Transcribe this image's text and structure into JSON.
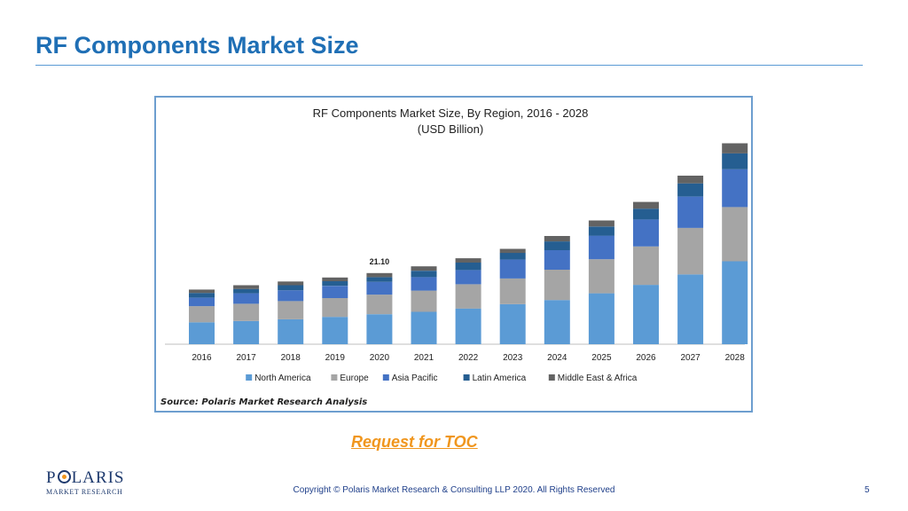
{
  "slide": {
    "title": "RF Components Market Size",
    "toc_link": "Request for TOC",
    "copyright": "Copyright © Polaris Market Research & Consulting LLP 2020. All Rights Reserved",
    "page_number": "5",
    "logo_main": "POLARIS",
    "logo_sub": "MARKET RESEARCH"
  },
  "chart_data": {
    "type": "bar",
    "stacked": true,
    "title": "RF Components Market Size, By Region, 2016 - 2028",
    "subtitle": "(USD Billion)",
    "source": "Source: Polaris  Market Research Analysis",
    "categories": [
      "2016",
      "2017",
      "2018",
      "2019",
      "2020",
      "2021",
      "2022",
      "2023",
      "2024",
      "2025",
      "2026",
      "2027",
      "2028"
    ],
    "annotation": {
      "category": "2020",
      "label": "21.10"
    },
    "ylim": [
      0,
      60
    ],
    "legend_position": "bottom",
    "grid": false,
    "series": [
      {
        "name": "North America",
        "color": "#5b9bd5",
        "values": [
          6.5,
          6.9,
          7.4,
          8.1,
          8.9,
          9.6,
          10.6,
          11.9,
          13.1,
          15.1,
          17.6,
          20.7,
          24.6
        ]
      },
      {
        "name": "Europe",
        "color": "#a5a5a5",
        "values": [
          4.8,
          5.1,
          5.4,
          5.6,
          5.8,
          6.3,
          7.2,
          7.6,
          9.0,
          10.1,
          11.4,
          13.8,
          16.1
        ]
      },
      {
        "name": "Asia Pacific",
        "color": "#4472c4",
        "values": [
          2.5,
          3.1,
          3.2,
          3.6,
          3.8,
          4.0,
          4.2,
          5.6,
          5.8,
          7.0,
          8.0,
          9.3,
          11.2
        ]
      },
      {
        "name": "Latin America",
        "color": "#255e91",
        "values": [
          1.4,
          1.3,
          1.5,
          1.4,
          1.4,
          1.9,
          2.2,
          2.0,
          2.6,
          2.7,
          3.2,
          3.9,
          4.7
        ]
      },
      {
        "name": "Middle East & Africa",
        "color": "#636363",
        "values": [
          1.0,
          1.1,
          1.1,
          1.1,
          1.2,
          1.3,
          1.3,
          1.2,
          1.6,
          1.8,
          2.0,
          2.3,
          3.0
        ]
      }
    ]
  }
}
